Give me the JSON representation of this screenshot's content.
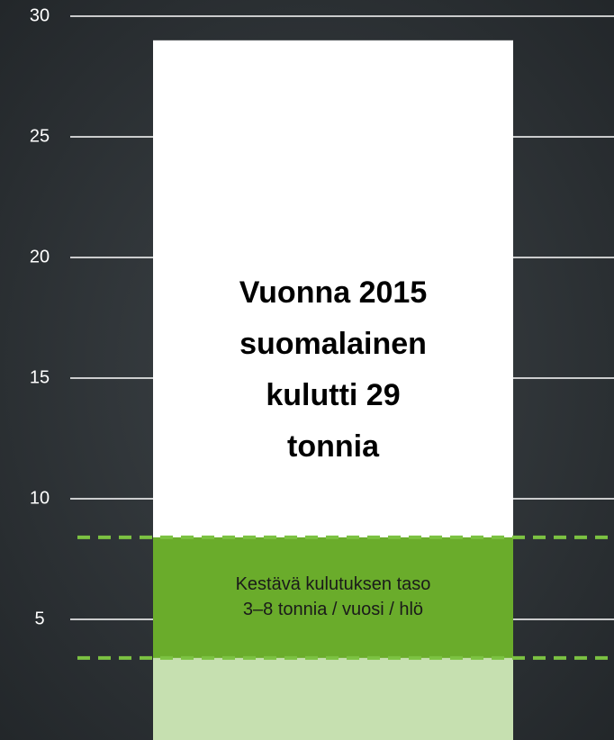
{
  "chart_data": {
    "type": "bar",
    "values": [
      29
    ],
    "color": "#ffffff",
    "band": [
      3.4,
      8.4
    ],
    "band_color": "#6aac2b",
    "below_band_color": "#c6e0b0",
    "band_line_color": "#7cc242",
    "annotation_lines": [
      "Vuonna 2015",
      "suomalainen",
      "kulutti 29",
      "tonnia"
    ],
    "band_label_lines": [
      "Kestävä kulutuksen taso",
      "3–8 tonnia / vuosi / hlö"
    ],
    "ylim": [
      0,
      30
    ],
    "yticks": [
      5,
      10,
      15,
      20,
      25,
      30
    ],
    "grid": true
  }
}
